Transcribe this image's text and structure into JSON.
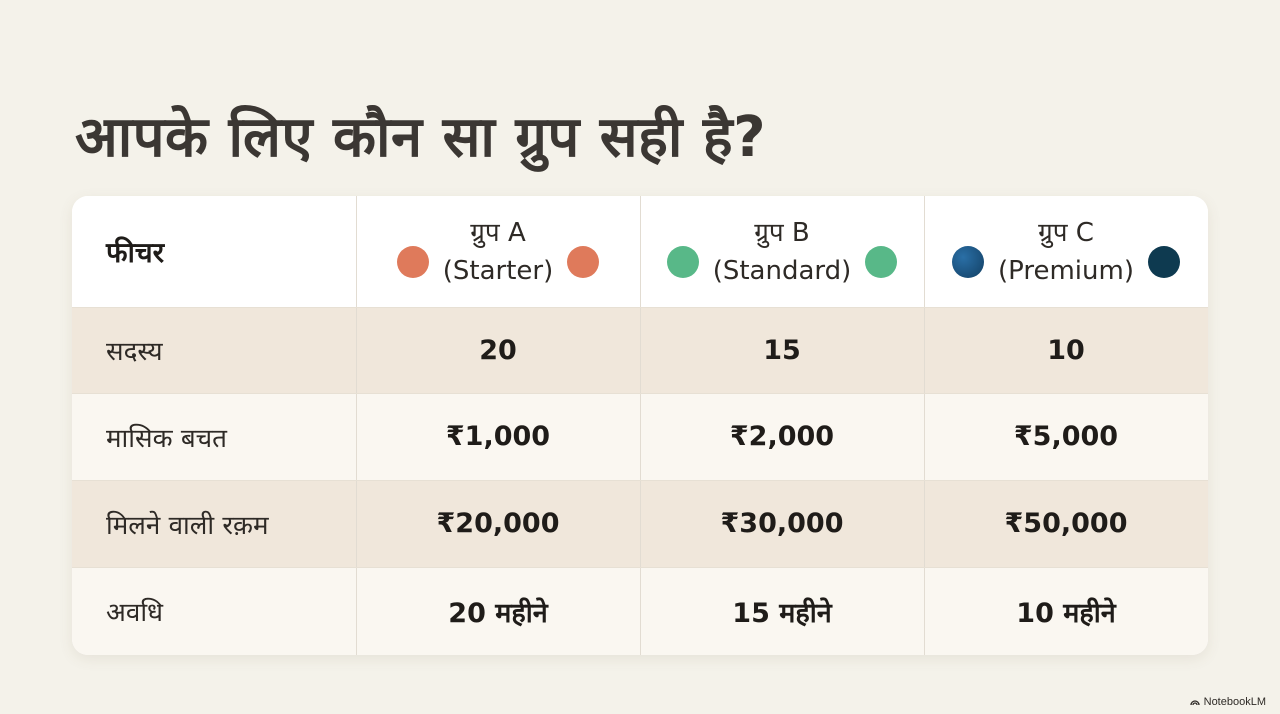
{
  "title": "आपके लिए कौन सा ग्रुप सही है?",
  "table": {
    "feature_header": "फीचर",
    "groups": [
      {
        "name": "ग्रुप A",
        "subtitle": "(Starter)",
        "color": "#df7a5b"
      },
      {
        "name": "ग्रुप B",
        "subtitle": "(Standard)",
        "color": "#58b888"
      },
      {
        "name": "ग्रुप C",
        "subtitle": "(Premium)",
        "color": "#1f5c8c",
        "color_alt": "#0e3a50"
      }
    ],
    "rows": [
      {
        "label": "सदस्य",
        "values": [
          "20",
          "15",
          "10"
        ]
      },
      {
        "label": "मासिक बचत",
        "values": [
          "₹1,000",
          "₹2,000",
          "₹5,000"
        ]
      },
      {
        "label": "मिलने वाली रक़म",
        "values": [
          "₹20,000",
          "₹30,000",
          "₹50,000"
        ]
      },
      {
        "label": "अवधि",
        "values": [
          "20 महीने",
          "15 महीने",
          "10 महीने"
        ]
      }
    ]
  },
  "footer": {
    "brand": "NotebookLM",
    "brand_icon": "notebooklm-logo-icon"
  }
}
